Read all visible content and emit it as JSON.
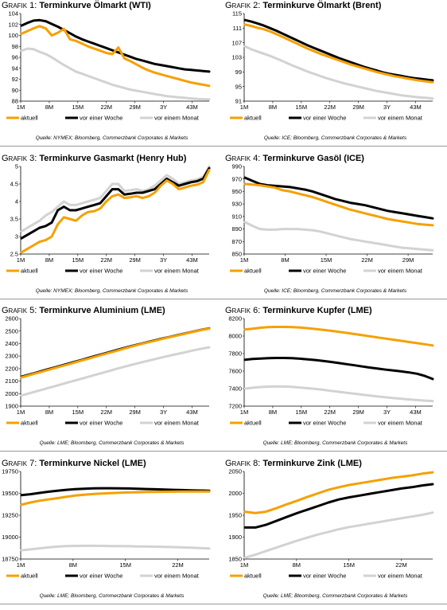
{
  "colors": {
    "aktuell": "#f5a000",
    "vor einer Woche": "#000000",
    "vor einem Monat": "#d2d2d2"
  },
  "chart_data": [
    {
      "type": "line",
      "prefix": "Grafik 1: ",
      "title": "Terminkurve Ölmarkt (WTI)",
      "source": "Quelle: NYMEX; Bloomberg, Commerzbank Corporates & Markets",
      "xticks": [
        "1M",
        "8M",
        "15M",
        "22M",
        "29M",
        "3Y",
        "43M"
      ],
      "ylim": [
        88,
        104
      ],
      "yticks": [
        88,
        90,
        92,
        94,
        96,
        98,
        100,
        102,
        104
      ],
      "series": [
        {
          "name": "aktuell",
          "values": [
            100.3,
            100.8,
            101.3,
            101.7,
            101.3,
            100.0,
            100.5,
            101.2,
            99.3,
            99.0,
            98.5,
            98.0,
            97.6,
            97.2,
            96.8,
            96.6,
            97.8,
            95.8,
            95.3,
            94.7,
            94.1,
            93.6,
            93.2,
            92.9,
            92.6,
            92.3,
            92.0,
            91.7,
            91.4,
            91.2,
            91.0,
            90.8
          ]
        },
        {
          "name": "vor einer Woche",
          "values": [
            101.8,
            102.3,
            102.7,
            102.8,
            102.6,
            102.1,
            101.6,
            101.0,
            100.4,
            99.8,
            99.3,
            98.9,
            98.5,
            98.1,
            97.7,
            97.3,
            96.9,
            96.5,
            96.1,
            95.7,
            95.4,
            95.1,
            94.8,
            94.6,
            94.4,
            94.2,
            94.0,
            93.8,
            93.7,
            93.6,
            93.5,
            93.4
          ]
        },
        {
          "name": "vor einem Monat",
          "values": [
            97.2,
            97.6,
            97.5,
            97.0,
            96.6,
            96.0,
            95.3,
            94.6,
            94.0,
            93.4,
            93.0,
            92.6,
            92.2,
            91.8,
            91.4,
            91.0,
            90.7,
            90.4,
            90.1,
            89.9,
            89.7,
            89.5,
            89.3,
            89.1,
            88.9,
            88.8,
            88.7,
            88.6,
            88.5,
            88.4,
            88.35,
            88.3
          ]
        }
      ]
    },
    {
      "type": "line",
      "prefix": "Grafik 2: ",
      "title": "Terminkurve Ölmarkt (Brent)",
      "source": "Quelle: ICE; Bloomberg, Commerzbank Corporates & Markets",
      "xticks": [
        "1M",
        "8M",
        "15M",
        "22M",
        "29M",
        "3Y",
        "43M"
      ],
      "ylim": [
        91,
        115
      ],
      "yticks": [
        91,
        95,
        99,
        103,
        107,
        111,
        115
      ],
      "series": [
        {
          "name": "aktuell",
          "values": [
            112.0,
            111.6,
            111.1,
            110.7,
            110.1,
            109.4,
            108.6,
            107.8,
            107.0,
            106.2,
            105.4,
            104.7,
            104.0,
            103.4,
            102.8,
            102.2,
            101.6,
            101.0,
            100.5,
            100.0,
            99.5,
            99.0,
            98.6,
            98.2,
            97.8,
            97.5,
            97.2,
            96.9,
            96.6,
            96.4,
            96.2
          ]
        },
        {
          "name": "vor einer Woche",
          "values": [
            113.2,
            112.8,
            112.3,
            111.7,
            111.0,
            110.3,
            109.5,
            108.7,
            107.9,
            107.1,
            106.3,
            105.6,
            104.9,
            104.2,
            103.5,
            102.8,
            102.2,
            101.6,
            101.0,
            100.4,
            99.9,
            99.4,
            98.9,
            98.5,
            98.2,
            97.9,
            97.6,
            97.3,
            97.1,
            96.9,
            96.7
          ]
        },
        {
          "name": "vor einem Monat",
          "values": [
            106.0,
            105.2,
            104.6,
            104.0,
            103.4,
            102.7,
            102.0,
            101.2,
            100.5,
            99.8,
            99.1,
            98.5,
            97.9,
            97.3,
            96.8,
            96.3,
            95.8,
            95.4,
            95.0,
            94.6,
            94.2,
            93.8,
            93.5,
            93.2,
            92.9,
            92.6,
            92.4,
            92.2,
            92.0,
            91.9,
            91.7
          ]
        }
      ]
    },
    {
      "type": "line",
      "prefix": "Grafik 3: ",
      "title": "Terminkurve Gasmarkt (Henry Hub)",
      "source": "Quelle: NYMEX; Bloomberg, Commerzbank Corporates & Markets",
      "xticks": [
        "1M",
        "8M",
        "15M",
        "22M",
        "29M",
        "3Y",
        "43M"
      ],
      "ylim": [
        2.5,
        5.0
      ],
      "yticks": [
        2.5,
        3.0,
        3.5,
        4.0,
        4.5,
        5.0
      ],
      "series": [
        {
          "name": "aktuell",
          "values": [
            2.55,
            2.65,
            2.75,
            2.85,
            2.9,
            3.0,
            3.35,
            3.55,
            3.5,
            3.45,
            3.6,
            3.7,
            3.72,
            3.8,
            4.0,
            4.15,
            4.2,
            4.1,
            4.12,
            4.15,
            4.1,
            4.15,
            4.25,
            4.45,
            4.6,
            4.5,
            4.35,
            4.4,
            4.45,
            4.48,
            4.55,
            4.9
          ]
        },
        {
          "name": "vor einer Woche",
          "values": [
            2.95,
            3.05,
            3.15,
            3.25,
            3.3,
            3.4,
            3.75,
            3.85,
            3.75,
            3.75,
            3.8,
            3.85,
            3.9,
            3.95,
            4.15,
            4.35,
            4.35,
            4.2,
            4.22,
            4.25,
            4.25,
            4.3,
            4.35,
            4.5,
            4.65,
            4.55,
            4.45,
            4.5,
            4.55,
            4.58,
            4.65,
            4.95
          ]
        },
        {
          "name": "vor einem Monat",
          "values": [
            3.15,
            3.25,
            3.35,
            3.45,
            3.6,
            3.7,
            3.85,
            4.0,
            3.9,
            3.9,
            3.95,
            4.0,
            4.05,
            4.1,
            4.3,
            4.5,
            4.5,
            4.3,
            4.32,
            4.35,
            4.3,
            4.35,
            4.45,
            4.6,
            4.75,
            4.65,
            4.5,
            4.55,
            4.6,
            4.63,
            4.7,
            5.0
          ]
        }
      ]
    },
    {
      "type": "line",
      "prefix": "Grafik 4: ",
      "title": "Terminkurve Gasöl (ICE)",
      "source": "Quelle: ICE; Bloomberg, Commerzbank Corporates & Markets",
      "xticks": [
        "1M",
        "8M",
        "15M",
        "22M",
        "29M"
      ],
      "ylim": [
        850,
        990
      ],
      "yticks": [
        850,
        870,
        890,
        910,
        930,
        950,
        970,
        990
      ],
      "series": [
        {
          "name": "aktuell",
          "values": [
            962,
            961,
            960,
            958,
            956,
            952,
            950,
            947,
            944,
            941,
            937,
            933,
            929,
            925,
            921,
            918,
            915,
            912,
            909,
            906,
            904,
            902,
            900,
            898,
            897,
            896
          ]
        },
        {
          "name": "vor einer Woche",
          "values": [
            972,
            967,
            962,
            960,
            959,
            958,
            957,
            955,
            953,
            950,
            946,
            942,
            938,
            935,
            932,
            930,
            928,
            925,
            922,
            919,
            917,
            915,
            913,
            911,
            909,
            907
          ]
        },
        {
          "name": "vor einem Monat",
          "values": [
            901,
            895,
            890,
            889,
            889,
            890,
            890,
            890,
            889,
            888,
            886,
            883,
            880,
            877,
            874,
            872,
            870,
            868,
            866,
            864,
            862,
            860,
            859,
            858,
            857,
            856
          ]
        }
      ]
    },
    {
      "type": "line",
      "prefix": "Grafik 5: ",
      "title": "Terminkurve Aluminium (LME)",
      "source": "Quelle: LME; Bloomberg, Commerzbank Corporates & Markets",
      "xticks": [
        "1M",
        "8M",
        "15M",
        "22M",
        "29M",
        "3Y",
        "43M"
      ],
      "ylim": [
        1900,
        2600
      ],
      "yticks": [
        1900,
        2000,
        2100,
        2200,
        2300,
        2400,
        2500,
        2600
      ],
      "series": [
        {
          "name": "aktuell",
          "values": [
            2130,
            2145,
            2160,
            2175,
            2190,
            2205,
            2220,
            2235,
            2250,
            2265,
            2280,
            2295,
            2310,
            2325,
            2340,
            2355,
            2370,
            2385,
            2398,
            2411,
            2424,
            2437,
            2450,
            2462,
            2474,
            2486,
            2498,
            2510,
            2520
          ]
        },
        {
          "name": "vor einer Woche",
          "values": [
            2135,
            2150,
            2165,
            2180,
            2195,
            2210,
            2225,
            2240,
            2255,
            2270,
            2285,
            2300,
            2315,
            2330,
            2345,
            2360,
            2374,
            2388,
            2401,
            2414,
            2427,
            2440,
            2452,
            2464,
            2476,
            2488,
            2500,
            2512,
            2522
          ]
        },
        {
          "name": "vor einem Monat",
          "values": [
            1985,
            2000,
            2015,
            2030,
            2045,
            2060,
            2075,
            2090,
            2105,
            2120,
            2135,
            2150,
            2165,
            2180,
            2195,
            2210,
            2224,
            2238,
            2251,
            2264,
            2277,
            2290,
            2302,
            2314,
            2326,
            2338,
            2350,
            2360,
            2370
          ]
        }
      ]
    },
    {
      "type": "line",
      "prefix": "Grafik 6: ",
      "title": "Terminkurve Kupfer (LME)",
      "source": "Quelle: LME; Bloomberg, Commerzbank Corporates & Markets",
      "xticks": [
        "1M",
        "8M",
        "15M",
        "22M",
        "29M",
        "3Y",
        "43M"
      ],
      "ylim": [
        7200,
        8200
      ],
      "yticks": [
        7200,
        7400,
        7600,
        7800,
        8000,
        8200
      ],
      "series": [
        {
          "name": "aktuell",
          "values": [
            8075,
            8085,
            8095,
            8102,
            8105,
            8105,
            8102,
            8097,
            8090,
            8081,
            8071,
            8060,
            8048,
            8036,
            8023,
            8010,
            7997,
            7984,
            7971,
            7958,
            7945,
            7932,
            7919,
            7906,
            7893
          ]
        },
        {
          "name": "vor einer Woche",
          "values": [
            7730,
            7738,
            7744,
            7748,
            7750,
            7750,
            7748,
            7742,
            7735,
            7726,
            7716,
            7705,
            7692,
            7679,
            7666,
            7653,
            7640,
            7628,
            7616,
            7606,
            7596,
            7585,
            7570,
            7545,
            7510
          ]
        },
        {
          "name": "vor einem Monat",
          "values": [
            7400,
            7410,
            7418,
            7423,
            7425,
            7424,
            7420,
            7413,
            7405,
            7396,
            7386,
            7375,
            7364,
            7353,
            7342,
            7331,
            7320,
            7310,
            7301,
            7292,
            7284,
            7276,
            7269,
            7263,
            7258
          ]
        }
      ]
    },
    {
      "type": "line",
      "prefix": "Grafik 7: ",
      "title": "Terminkurve Nickel (LME)",
      "source": "Quelle: LME; Bloomberg, Commerzbank Corporates & Markets",
      "xticks": [
        "1M",
        "8M",
        "15M",
        "22M"
      ],
      "ylim": [
        18750,
        19750
      ],
      "yticks": [
        18750,
        19000,
        19250,
        19500,
        19750
      ],
      "series": [
        {
          "name": "aktuell",
          "values": [
            19370,
            19395,
            19415,
            19430,
            19445,
            19460,
            19475,
            19485,
            19492,
            19498,
            19503,
            19507,
            19510,
            19513,
            19515,
            19517,
            19518,
            19519,
            19520,
            19520,
            19520,
            19520
          ]
        },
        {
          "name": "vor einer Woche",
          "values": [
            19480,
            19490,
            19505,
            19518,
            19530,
            19540,
            19548,
            19553,
            19556,
            19558,
            19558,
            19557,
            19555,
            19552,
            19549,
            19546,
            19543,
            19540,
            19537,
            19534,
            19532,
            19530
          ]
        },
        {
          "name": "vor einem Monat",
          "values": [
            18850,
            18860,
            18872,
            18883,
            18892,
            18898,
            18900,
            18901,
            18901,
            18900,
            18898,
            18897,
            18896,
            18894,
            18893,
            18891,
            18889,
            18886,
            18883,
            18879,
            18875,
            18870
          ]
        }
      ]
    },
    {
      "type": "line",
      "prefix": "Grafik 8: ",
      "title": "Terminkurve Zink (LME)",
      "source": "Quelle: LME; Bloomberg, Commerzbank Corporates & Markets",
      "xticks": [
        "1M",
        "8M",
        "15M",
        "22M"
      ],
      "ylim": [
        1850,
        2050
      ],
      "yticks": [
        1850,
        1900,
        1950,
        2000,
        2050
      ],
      "series": [
        {
          "name": "aktuell",
          "values": [
            1958,
            1955,
            1958,
            1966,
            1975,
            1983,
            1992,
            2000,
            2008,
            2014,
            2019,
            2023,
            2027,
            2031,
            2035,
            2038,
            2041,
            2045,
            2048
          ]
        },
        {
          "name": "vor einer Woche",
          "values": [
            1922,
            1922,
            1928,
            1937,
            1946,
            1955,
            1963,
            1971,
            1979,
            1986,
            1991,
            1995,
            1999,
            2003,
            2007,
            2011,
            2014,
            2018,
            2021
          ]
        },
        {
          "name": "vor einem Monat",
          "values": [
            1853,
            1860,
            1868,
            1876,
            1884,
            1892,
            1899,
            1906,
            1912,
            1918,
            1923,
            1927,
            1931,
            1935,
            1939,
            1943,
            1947,
            1951,
            1956
          ]
        }
      ]
    }
  ]
}
